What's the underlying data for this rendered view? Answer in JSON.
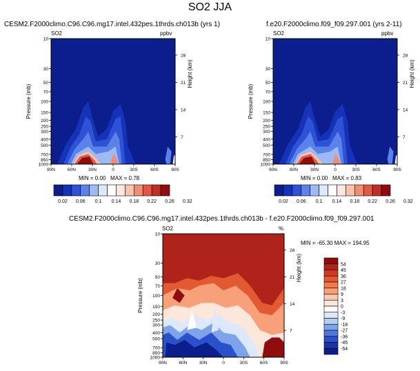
{
  "page": {
    "title": "SO2 JJA"
  },
  "panels": [
    {
      "case_title": "CESM2.F2000climo.C96.C96.mg17.intel.432pes.1thrds.ch013b (yrs 1)",
      "var_label": "SO2",
      "units": "ppbv",
      "stats": {
        "min_label": "MIN =",
        "min": "0.00",
        "max_label": "MAX =",
        "max": "0.78"
      }
    },
    {
      "case_title": "f.e20.F2000climo.f09_f09.297.001 (yrs 2-11)",
      "var_label": "SO2",
      "units": "ppbv",
      "stats": {
        "min_label": "MIN =",
        "min": "0.00",
        "max_label": "MAX =",
        "max": "0.83"
      }
    },
    {
      "case_title": "CESM2.F2000climo.C96.C96.mg17.intel.432pes.1thrds.ch013b - f.e20.F2000climo.f09_f09.297.001",
      "var_label": "SO2",
      "units": "%",
      "stats": {
        "text": "MIN = -65.30  MAX = 194.95"
      }
    }
  ],
  "chart_data": [
    {
      "type": "heatmap",
      "title": "CESM2.F2000climo.C96.C96.mg17.intel.432pes.1thrds.ch013b (yrs 1)",
      "ylabel": "Pressure (mb)",
      "y2label": "Height (km)",
      "x_ticks": [
        "90N",
        "60N",
        "30N",
        "0",
        "30S",
        "60S",
        "90S"
      ],
      "y_ticks": [
        "10",
        "30",
        "50",
        "70",
        "100",
        "150",
        "200",
        "250",
        "300",
        "400",
        "500",
        "700",
        "850",
        "1000"
      ],
      "y2_ticks": [
        "28",
        "21",
        "14",
        "7"
      ],
      "levels": [
        "0.02",
        "0.06",
        "0.1",
        "0.14",
        "0.18",
        "0.22",
        "0.26",
        "0.32"
      ],
      "colors": [
        "#0b1e8c",
        "#1433b8",
        "#2d52d6",
        "#5b82eb",
        "#9dbaf5",
        "#dce8fb",
        "#ffffff",
        "#fde7df",
        "#f9c2ad",
        "#f08d74",
        "#de5a45",
        "#c02e24",
        "#8f0d0d"
      ],
      "min": 0.0,
      "max": 0.78
    },
    {
      "type": "heatmap",
      "title": "f.e20.F2000climo.f09_f09.297.001 (yrs 2-11)",
      "ylabel": "Pressure (mb)",
      "y2label": "Height (km)",
      "x_ticks": [
        "90N",
        "60N",
        "30N",
        "0",
        "30S",
        "60S",
        "90S"
      ],
      "y_ticks": [
        "10",
        "30",
        "50",
        "70",
        "100",
        "150",
        "200",
        "250",
        "300",
        "400",
        "500",
        "700",
        "850",
        "1000"
      ],
      "y2_ticks": [
        "28",
        "21",
        "14",
        "7"
      ],
      "levels": [
        "0.02",
        "0.06",
        "0.1",
        "0.14",
        "0.18",
        "0.22",
        "0.26",
        "0.32"
      ],
      "colors": [
        "#0b1e8c",
        "#1433b8",
        "#2d52d6",
        "#5b82eb",
        "#9dbaf5",
        "#dce8fb",
        "#ffffff",
        "#fde7df",
        "#f9c2ad",
        "#f08d74",
        "#de5a45",
        "#c02e24",
        "#8f0d0d"
      ],
      "min": 0.0,
      "max": 0.83
    },
    {
      "type": "heatmap",
      "title": "CESM2.F2000climo.C96.C96.mg17.intel.432pes.1thrds.ch013b - f.e20.F2000climo.f09_f09.297.001",
      "ylabel": "Pressure (mb)",
      "y2label": "Height (km)",
      "x_ticks": [
        "90N",
        "60N",
        "30N",
        "0",
        "30S",
        "60S",
        "90S"
      ],
      "y_ticks": [
        "10",
        "30",
        "50",
        "70",
        "100",
        "150",
        "200",
        "250",
        "300",
        "400",
        "500",
        "700",
        "850",
        "1000"
      ],
      "y2_ticks": [
        "28",
        "21",
        "14",
        "7"
      ],
      "levels": [
        "54",
        "45",
        "36",
        "27",
        "18",
        "9",
        "3",
        "0",
        "-3",
        "-9",
        "-18",
        "-27",
        "-36",
        "-45",
        "-54"
      ],
      "colors": [
        "#8f0d0d",
        "#b0231a",
        "#cf3a22",
        "#e35a32",
        "#f07a4a",
        "#f7a07a",
        "#fbc7ad",
        "#fde6da",
        "#ffffff",
        "#dde8fa",
        "#b5cbf3",
        "#7fa3ea",
        "#4f78de",
        "#2a51c9",
        "#1635a8",
        "#0b1e8c"
      ],
      "min": -65.3,
      "max": 194.95
    }
  ]
}
